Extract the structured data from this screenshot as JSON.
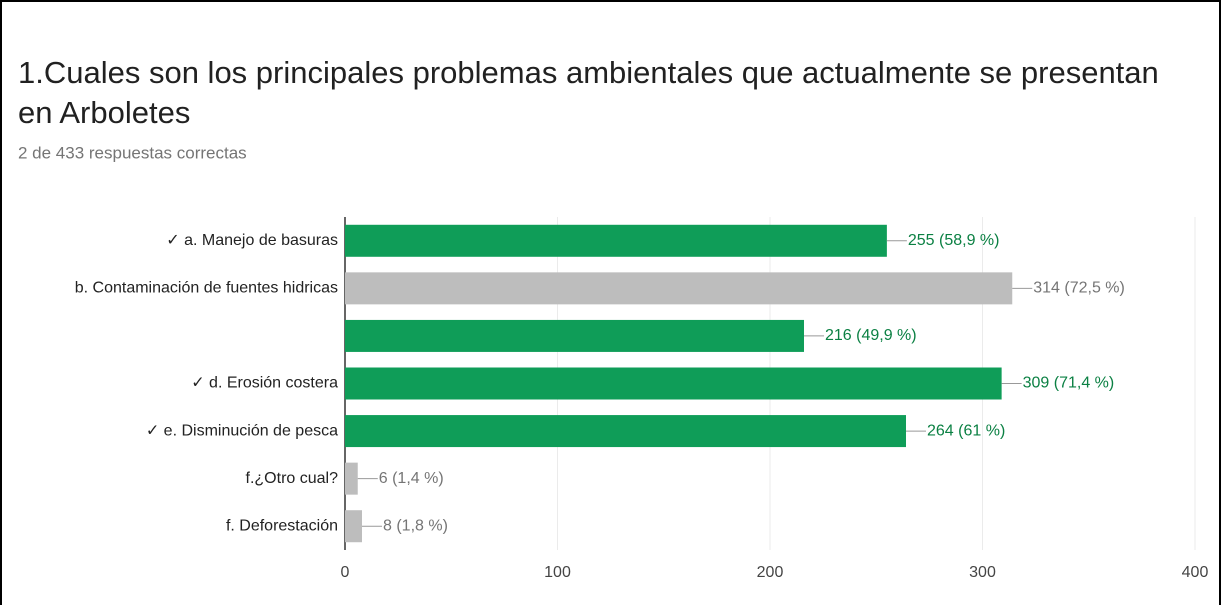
{
  "chart_data": {
    "type": "bar",
    "orientation": "horizontal",
    "title": "1.Cuales son los principales problemas ambientales que actualmente se presentan en Arboletes",
    "subtitle": "2 de 433 respuestas correctas",
    "categories": [
      "✓ a. Manejo de basuras",
      "b. Contaminación de fuentes hidricas",
      null,
      "✓ d. Erosión costera",
      "✓ e. Disminución de pesca",
      "f.¿Otro cual?",
      "f. Deforestación"
    ],
    "values": [
      255,
      314,
      216,
      309,
      264,
      6,
      8
    ],
    "value_labels": [
      "255 (58,9 %)",
      "314 (72,5 %)",
      "216 (49,9 %)",
      "309 (71,4 %)",
      "264 (61 %)",
      "6 (1,4 %)",
      "8 (1,8 %)"
    ],
    "colors": [
      "#0f9d58",
      "#bdbdbd",
      "#0f9d58",
      "#0f9d58",
      "#0f9d58",
      "#bdbdbd",
      "#bdbdbd"
    ],
    "label_colors": [
      "#0b8043",
      "#757575",
      "#0b8043",
      "#0b8043",
      "#0b8043",
      "#757575",
      "#757575"
    ],
    "xlim": [
      0,
      400
    ],
    "xticks": [
      0,
      100,
      200,
      300,
      400
    ],
    "grid": true
  }
}
